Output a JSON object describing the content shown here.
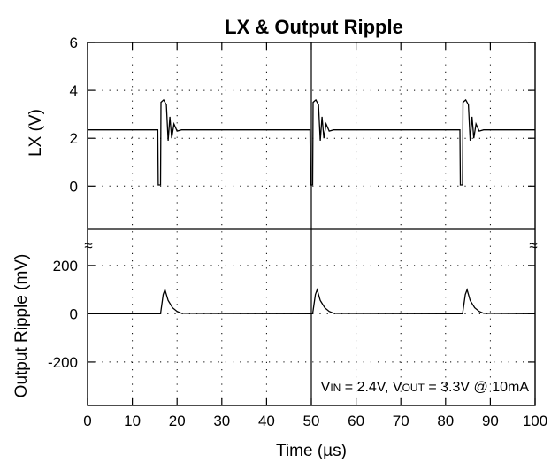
{
  "chart_data": {
    "type": "line",
    "title": "LX & Output Ripple",
    "xlabel": "Time (µs)",
    "xlim": [
      0,
      100
    ],
    "xticks": [
      "0",
      "10",
      "20",
      "30",
      "40",
      "50",
      "60",
      "70",
      "80",
      "90",
      "100"
    ],
    "grid": true,
    "axis_break_symbol": "≈",
    "annotation": {
      "vin_label": "V",
      "vin_sub": "IN",
      "vin_value": " = 2.4V, V",
      "vout_sub": "OUT",
      "vout_value": " = 3.3V @ 10mA"
    },
    "panels": [
      {
        "ylabel": "LX (V)",
        "ylim": [
          -1.8,
          6
        ],
        "yticks": [
          "6",
          "4",
          "2",
          "0"
        ],
        "ytick_values": [
          6,
          4,
          2,
          0
        ],
        "series": [
          {
            "x": [
              0,
              15.7,
              15.8,
              16.3,
              16.4,
              17.0,
              17.6,
              18.0,
              18.4,
              18.8,
              19.3,
              20.0,
              21.0,
              49.7,
              49.8,
              50.3,
              50.4,
              51.0,
              51.6,
              52.0,
              52.4,
              52.8,
              53.3,
              54.0,
              55.0,
              83.2,
              83.3,
              83.8,
              83.9,
              84.5,
              85.1,
              85.5,
              85.9,
              86.3,
              86.8,
              87.5,
              88.5,
              100
            ],
            "y": [
              2.35,
              2.35,
              0.05,
              0.05,
              3.5,
              3.6,
              3.4,
              1.9,
              2.9,
              2.0,
              2.6,
              2.3,
              2.35,
              2.35,
              0.05,
              0.05,
              3.5,
              3.6,
              3.4,
              1.9,
              2.9,
              2.0,
              2.6,
              2.3,
              2.35,
              2.35,
              0.05,
              0.05,
              3.5,
              3.6,
              3.4,
              1.9,
              2.9,
              2.0,
              2.6,
              2.3,
              2.35,
              2.35
            ]
          }
        ]
      },
      {
        "ylabel": "Output Ripple (mV)",
        "ylim": [
          -380,
          350
        ],
        "yticks": [
          "200",
          "0",
          "-200"
        ],
        "ytick_values": [
          200,
          0,
          -200
        ],
        "series": [
          {
            "x": [
              0,
              16.3,
              16.9,
              17.3,
              18.0,
              19.0,
              20.0,
              21.0,
              50.3,
              50.9,
              51.3,
              52.0,
              53.0,
              54.0,
              55.0,
              83.8,
              84.4,
              84.8,
              85.5,
              86.5,
              87.5,
              88.5,
              100
            ],
            "y": [
              0,
              0,
              80,
              100,
              55,
              25,
              10,
              2,
              0,
              80,
              100,
              55,
              25,
              10,
              2,
              0,
              80,
              100,
              55,
              25,
              10,
              2,
              0
            ]
          }
        ]
      }
    ]
  }
}
